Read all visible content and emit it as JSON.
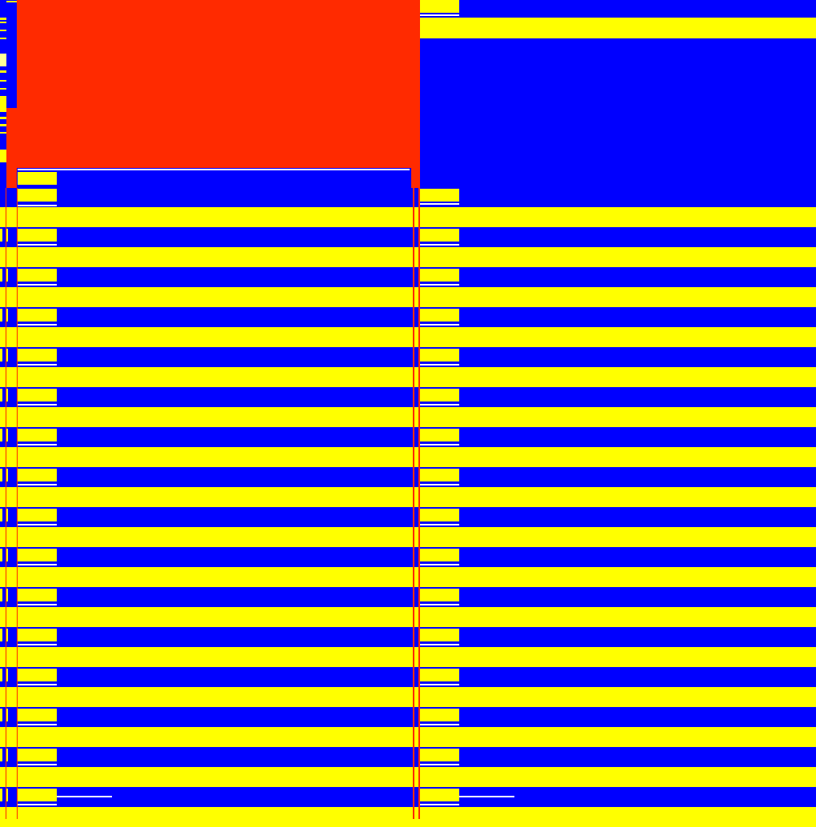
{
  "colors": {
    "blue": "#0000ff",
    "yellow": "#ffff00",
    "red": "#ff2a00",
    "white": "#ffffff",
    "pale_yellow": "#ffff99"
  }
}
